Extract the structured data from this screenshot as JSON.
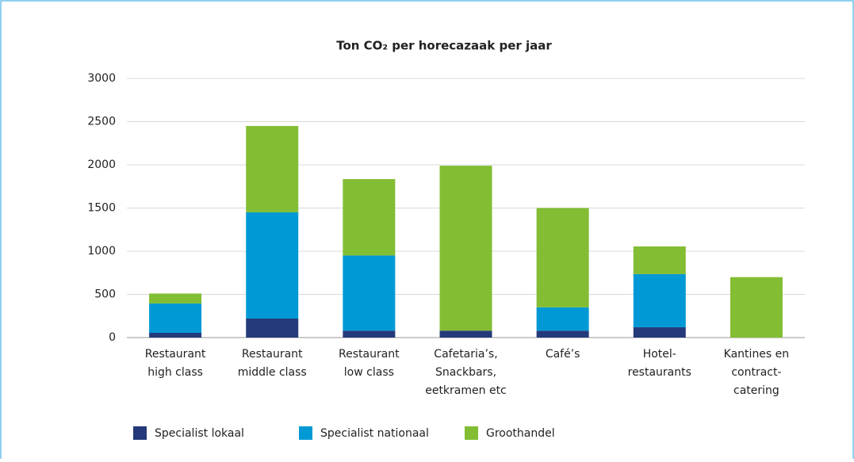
{
  "chart_data": {
    "type": "stacked_bar",
    "title": "Ton CO₂ per horecazaak per jaar",
    "categories": [
      [
        "Restaurant",
        "high class"
      ],
      [
        "Restaurant",
        "middle class"
      ],
      [
        "Restaurant",
        "low class"
      ],
      [
        "Cafetaria’s,",
        "Snackbars,",
        "eetkramen etc"
      ],
      [
        "Café’s"
      ],
      [
        "Hotel-",
        "restaurants"
      ],
      [
        "Kantines en",
        "contract-",
        "catering"
      ]
    ],
    "series": [
      {
        "name": "Specialist lokaal",
        "color": "#253a7a",
        "values": [
          55,
          220,
          80,
          80,
          80,
          120,
          0
        ]
      },
      {
        "name": "Specialist nationaal",
        "color": "#0099d6",
        "values": [
          340,
          1230,
          870,
          0,
          270,
          615,
          0
        ]
      },
      {
        "name": "Groothandel",
        "color": "#83bd33",
        "values": [
          115,
          1000,
          885,
          1910,
          1150,
          320,
          700
        ]
      }
    ],
    "ylim": [
      0,
      3000
    ],
    "yticks": [
      0,
      500,
      1000,
      1500,
      2000,
      2500,
      3000
    ],
    "grid": true,
    "legend": "bottom"
  }
}
